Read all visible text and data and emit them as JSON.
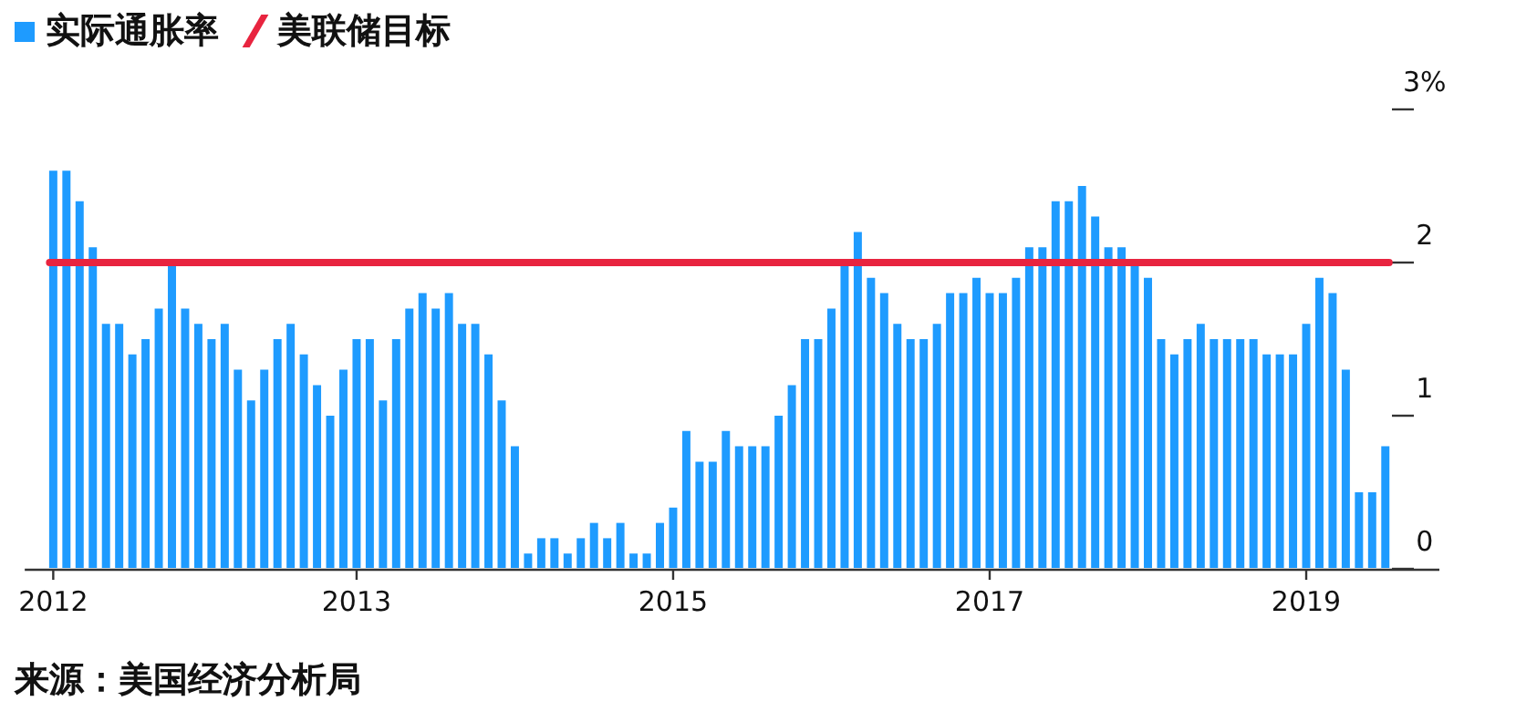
{
  "chart_data": {
    "type": "bar",
    "categories": [
      "2012",
      null,
      null,
      null,
      null,
      null,
      null,
      null,
      null,
      null,
      null,
      null,
      null,
      null,
      null,
      null,
      null,
      null,
      null,
      null,
      null,
      null,
      null,
      "2013",
      null,
      null,
      null,
      null,
      null,
      null,
      null,
      null,
      null,
      null,
      null,
      null,
      null,
      null,
      null,
      null,
      null,
      null,
      null,
      null,
      null,
      null,
      null,
      "2015",
      null,
      null,
      null,
      null,
      null,
      null,
      null,
      null,
      null,
      null,
      null,
      null,
      null,
      null,
      null,
      null,
      null,
      null,
      null,
      null,
      null,
      null,
      null,
      "2017",
      null,
      null,
      null,
      null,
      null,
      null,
      null,
      null,
      null,
      null,
      null,
      null,
      null,
      null,
      null,
      null,
      null,
      null,
      null,
      null,
      null,
      null,
      null,
      "2019",
      null,
      null,
      null,
      null,
      null,
      null
    ],
    "series": [
      {
        "name": "实际通胀率",
        "color": "#1e9bff",
        "values": [
          2.6,
          2.6,
          2.4,
          2.1,
          1.6,
          1.6,
          1.4,
          1.5,
          1.7,
          2.0,
          1.7,
          1.6,
          1.5,
          1.6,
          1.3,
          1.1,
          1.3,
          1.5,
          1.6,
          1.4,
          1.2,
          1.0,
          1.3,
          1.5,
          1.5,
          1.1,
          1.5,
          1.7,
          1.8,
          1.7,
          1.8,
          1.6,
          1.6,
          1.4,
          1.1,
          0.8,
          0.1,
          0.2,
          0.2,
          0.1,
          0.2,
          0.3,
          0.2,
          0.3,
          0.1,
          0.1,
          0.3,
          0.4,
          0.9,
          0.7,
          0.7,
          0.9,
          0.8,
          0.8,
          0.8,
          1.0,
          1.2,
          1.5,
          1.5,
          1.7,
          2.0,
          2.2,
          1.9,
          1.8,
          1.6,
          1.5,
          1.5,
          1.6,
          1.8,
          1.8,
          1.9,
          1.8,
          1.8,
          1.9,
          2.1,
          2.1,
          2.4,
          2.4,
          2.5,
          2.3,
          2.1,
          2.1,
          2.0,
          1.9,
          1.5,
          1.4,
          1.5,
          1.6,
          1.5,
          1.5,
          1.5,
          1.5,
          1.4,
          1.4,
          1.4,
          1.6,
          1.9,
          1.8,
          1.3,
          0.5,
          0.5,
          0.8
        ]
      }
    ],
    "ylim": [
      0,
      3
    ],
    "yticks": [
      0,
      1,
      2,
      {
        "value": 3,
        "label": "3%"
      }
    ],
    "ref_lines": [
      {
        "axis": "y",
        "value": 2,
        "label": "美联储目标",
        "color": "#e8243f"
      }
    ],
    "grid": false,
    "legend": "top left",
    "annotations": [
      "来源：美国经济分析局"
    ]
  }
}
